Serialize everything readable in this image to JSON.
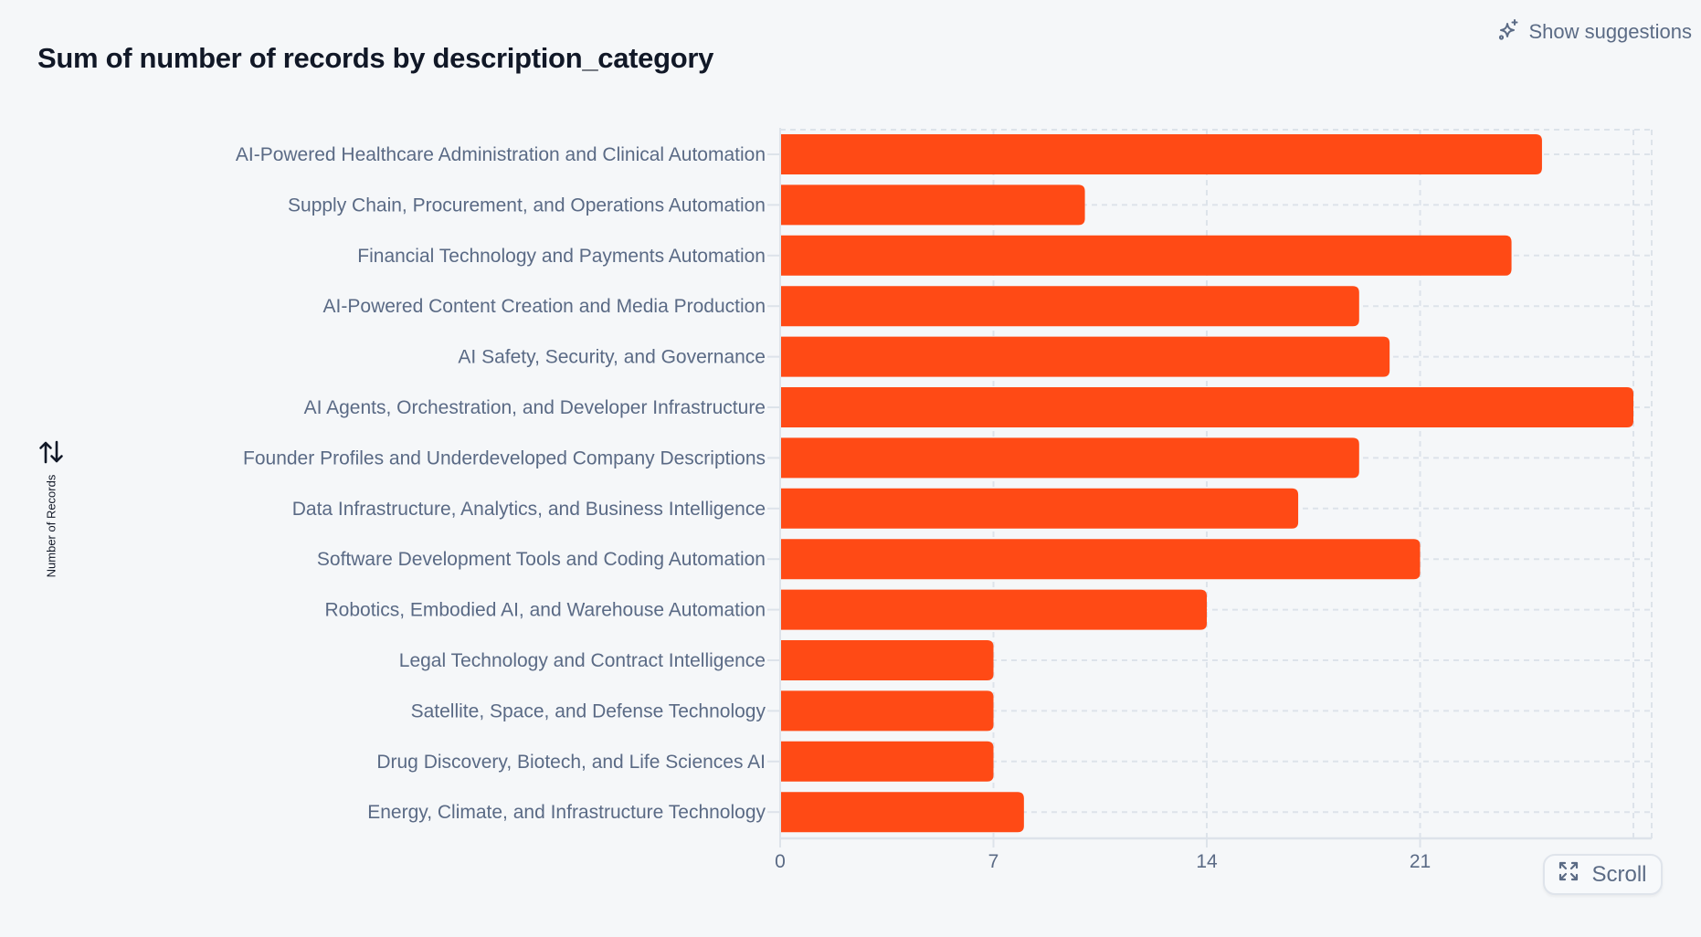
{
  "header": {
    "title": "Sum of number of records by description_category",
    "suggestions_label": "Show suggestions",
    "suggestions_icon": "sparkles-icon"
  },
  "controls": {
    "sort_icon": "sort-arrows-icon",
    "scroll_label": "Scroll",
    "scroll_icon": "expand-icon"
  },
  "colors": {
    "bar": "#ff4a15",
    "background": "#f5f7f9",
    "grid": "#dde3ea",
    "label": "#5a6a85"
  },
  "chart_data": {
    "type": "bar",
    "orientation": "horizontal",
    "title": "Sum of number of records by description_category",
    "xlabel": "",
    "ylabel": "Number of Records",
    "categories": [
      "AI-Powered Healthcare Administration and Clinical Automation",
      "Supply Chain, Procurement, and Operations Automation",
      "Financial Technology and Payments Automation",
      "AI-Powered Content Creation and Media Production",
      "AI Safety, Security, and Governance",
      "AI Agents, Orchestration, and Developer Infrastructure",
      "Founder Profiles and Underdeveloped Company Descriptions",
      "Data Infrastructure, Analytics, and Business Intelligence",
      "Software Development Tools and Coding Automation",
      "Robotics, Embodied AI, and Warehouse Automation",
      "Legal Technology and Contract Intelligence",
      "Satellite, Space, and Defense Technology",
      "Drug Discovery, Biotech, and Life Sciences AI",
      "Energy, Climate, and Infrastructure Technology"
    ],
    "values": [
      25,
      10,
      24,
      19,
      20,
      28,
      19,
      17,
      21,
      14,
      7,
      7,
      7,
      8
    ],
    "xlim": [
      0,
      28.7
    ],
    "xticks": [
      0,
      7,
      14,
      21
    ],
    "gridlines": [
      0,
      7,
      14,
      21,
      28
    ],
    "grid": true,
    "legend": "none"
  }
}
